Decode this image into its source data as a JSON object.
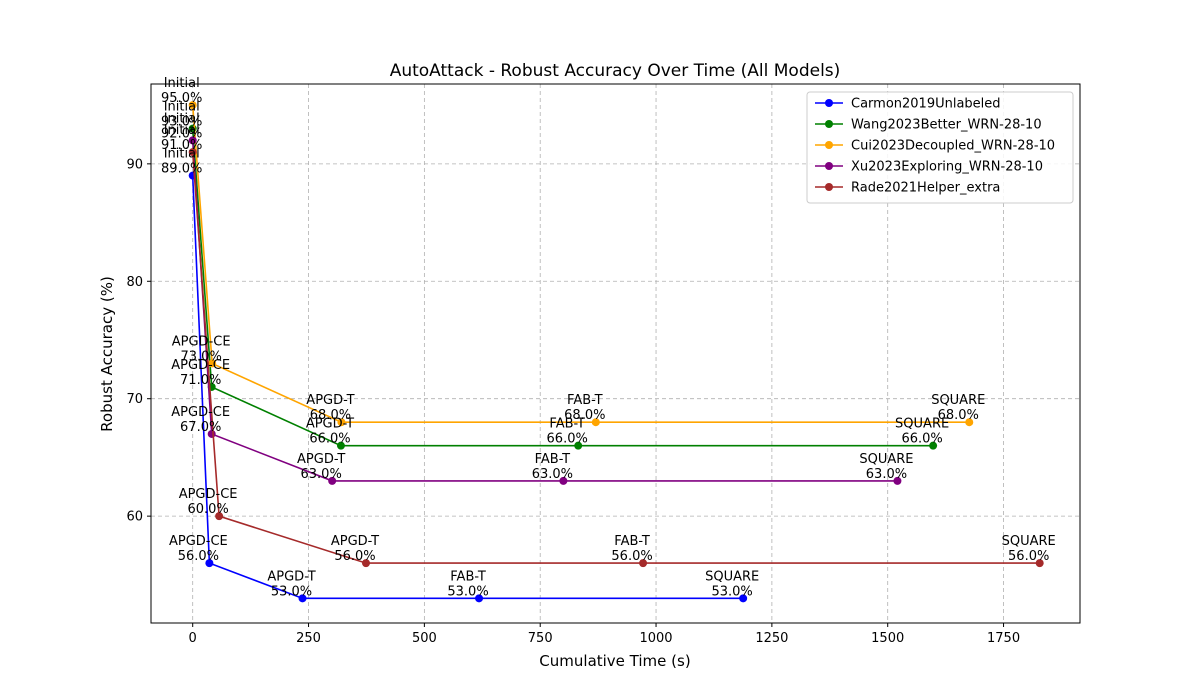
{
  "chart_data": {
    "type": "line",
    "title": "AutoAttack - Robust Accuracy Over Time (All Models)",
    "xlabel": "Cumulative Time (s)",
    "ylabel": "Robust Accuracy (%)",
    "xlim": [
      -90,
      1915
    ],
    "ylim": [
      50.9,
      96.8
    ],
    "xticks": [
      0,
      250,
      500,
      750,
      1000,
      1250,
      1500,
      1750
    ],
    "yticks": [
      60,
      70,
      80,
      90
    ],
    "grid": true,
    "legend_position": "top-right",
    "series": [
      {
        "name": "Carmon2019Unlabeled",
        "color": "#0000ff",
        "x": [
          0,
          36,
          237,
          618,
          1188
        ],
        "y": [
          89,
          56,
          53,
          53,
          53
        ],
        "stages": [
          "Initial",
          "APGD-CE",
          "APGD-T",
          "FAB-T",
          "SQUARE"
        ],
        "labels": [
          "89.0%",
          "56.0%",
          "53.0%",
          "53.0%",
          "53.0%"
        ]
      },
      {
        "name": "Wang2023Better_WRN-28-10",
        "color": "#008000",
        "x": [
          0,
          41,
          320,
          832,
          1598
        ],
        "y": [
          93,
          71,
          66,
          66,
          66
        ],
        "stages": [
          "Initial",
          "APGD-CE",
          "APGD-T",
          "FAB-T",
          "SQUARE"
        ],
        "labels": [
          "93.0%",
          "71.0%",
          "66.0%",
          "66.0%",
          "66.0%"
        ]
      },
      {
        "name": "Cui2023Decoupled_WRN-28-10",
        "color": "#ffa500",
        "x": [
          0,
          42,
          321,
          870,
          1676
        ],
        "y": [
          95,
          73,
          68,
          68,
          68
        ],
        "stages": [
          "Initial",
          "APGD-CE",
          "APGD-T",
          "FAB-T",
          "SQUARE"
        ],
        "labels": [
          "95.0%",
          "73.0%",
          "68.0%",
          "68.0%",
          "68.0%"
        ]
      },
      {
        "name": "Xu2023Exploring_WRN-28-10",
        "color": "#800080",
        "x": [
          0,
          41,
          301,
          800,
          1521
        ],
        "y": [
          92,
          67,
          63,
          63,
          63
        ],
        "stages": [
          "Initial",
          "APGD-CE",
          "APGD-T",
          "FAB-T",
          "SQUARE"
        ],
        "labels": [
          "92.0%",
          "67.0%",
          "63.0%",
          "63.0%",
          "63.0%"
        ]
      },
      {
        "name": "Rade2021Helper_extra",
        "color": "#a52a2a",
        "x": [
          0,
          57,
          374,
          972,
          1828
        ],
        "y": [
          91,
          60,
          56,
          56,
          56
        ],
        "stages": [
          "Initial",
          "APGD-CE",
          "APGD-T",
          "FAB-T",
          "SQUARE"
        ],
        "labels": [
          "91.0%",
          "60.0%",
          "56.0%",
          "56.0%",
          "56.0%"
        ]
      }
    ]
  }
}
